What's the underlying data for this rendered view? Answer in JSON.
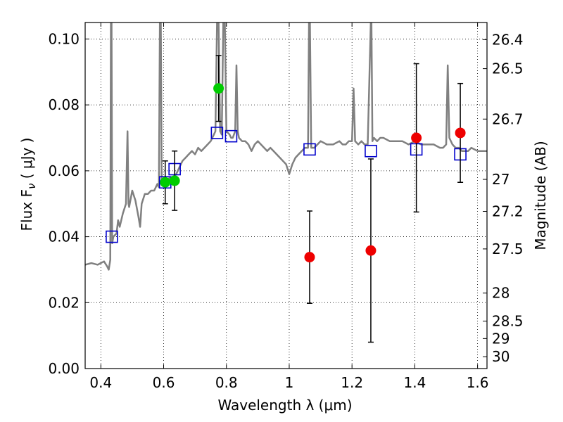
{
  "chart_data": {
    "type": "line",
    "xlabel": "Wavelength  λ (μm)",
    "ylabel": "Flux  F",
    "ylabel_sub": "ν",
    "ylabel_units": " ( μJy )",
    "y2label": "Magnitude (AB)",
    "xlim": [
      0.35,
      1.63
    ],
    "ylim": [
      0.0,
      0.105
    ],
    "xticks": [
      0.4,
      0.6,
      0.8,
      1.0,
      1.2,
      1.4,
      1.6
    ],
    "xtick_labels": [
      "0.4",
      "0.6",
      "0.8",
      "1",
      "1.2",
      "1.4",
      "1.6"
    ],
    "yticks": [
      0.0,
      0.02,
      0.04,
      0.06,
      0.08,
      0.1
    ],
    "ytick_labels": [
      "0.00",
      "0.02",
      "0.04",
      "0.06",
      "0.08",
      "0.10"
    ],
    "y2ticks": [
      {
        "label": "26.4",
        "flux": 0.0998
      },
      {
        "label": "26.5",
        "flux": 0.091
      },
      {
        "label": "26.7",
        "flux": 0.0757
      },
      {
        "label": "27",
        "flux": 0.0574
      },
      {
        "label": "27.2",
        "flux": 0.0477
      },
      {
        "label": "27.5",
        "flux": 0.0363
      },
      {
        "label": "28",
        "flux": 0.0229
      },
      {
        "label": "28.5",
        "flux": 0.0144
      },
      {
        "label": "29",
        "flux": 0.0091
      },
      {
        "label": "30",
        "flux": 0.0036
      }
    ],
    "grid": true,
    "series": [
      {
        "kind": "sed_model",
        "color": "#808080",
        "points": [
          [
            0.35,
            0.0315
          ],
          [
            0.37,
            0.032
          ],
          [
            0.39,
            0.0315
          ],
          [
            0.41,
            0.0325
          ],
          [
            0.42,
            0.031
          ],
          [
            0.425,
            0.03
          ],
          [
            0.43,
            0.033
          ],
          [
            0.432,
            0.105
          ],
          [
            0.434,
            0.105
          ],
          [
            0.436,
            0.038
          ],
          [
            0.44,
            0.04
          ],
          [
            0.45,
            0.041
          ],
          [
            0.455,
            0.045
          ],
          [
            0.46,
            0.043
          ],
          [
            0.47,
            0.047
          ],
          [
            0.48,
            0.05
          ],
          [
            0.485,
            0.072
          ],
          [
            0.488,
            0.05
          ],
          [
            0.49,
            0.049
          ],
          [
            0.5,
            0.054
          ],
          [
            0.51,
            0.051
          ],
          [
            0.52,
            0.046
          ],
          [
            0.525,
            0.043
          ],
          [
            0.53,
            0.05
          ],
          [
            0.54,
            0.053
          ],
          [
            0.55,
            0.053
          ],
          [
            0.56,
            0.054
          ],
          [
            0.57,
            0.054
          ],
          [
            0.58,
            0.056
          ],
          [
            0.585,
            0.055
          ],
          [
            0.588,
            0.105
          ],
          [
            0.591,
            0.105
          ],
          [
            0.594,
            0.056
          ],
          [
            0.6,
            0.056
          ],
          [
            0.61,
            0.057
          ],
          [
            0.62,
            0.058
          ],
          [
            0.63,
            0.058
          ],
          [
            0.64,
            0.059
          ],
          [
            0.645,
            0.06
          ],
          [
            0.65,
            0.061
          ],
          [
            0.655,
            0.062
          ],
          [
            0.66,
            0.063
          ],
          [
            0.67,
            0.064
          ],
          [
            0.68,
            0.065
          ],
          [
            0.69,
            0.066
          ],
          [
            0.7,
            0.065
          ],
          [
            0.71,
            0.067
          ],
          [
            0.72,
            0.066
          ],
          [
            0.73,
            0.067
          ],
          [
            0.74,
            0.068
          ],
          [
            0.75,
            0.069
          ],
          [
            0.755,
            0.07
          ],
          [
            0.76,
            0.071
          ],
          [
            0.765,
            0.072
          ],
          [
            0.77,
            0.105
          ],
          [
            0.775,
            0.105
          ],
          [
            0.78,
            0.072
          ],
          [
            0.785,
            0.071
          ],
          [
            0.79,
            0.105
          ],
          [
            0.795,
            0.105
          ],
          [
            0.8,
            0.072
          ],
          [
            0.81,
            0.071
          ],
          [
            0.815,
            0.07
          ],
          [
            0.82,
            0.07
          ],
          [
            0.828,
            0.072
          ],
          [
            0.832,
            0.092
          ],
          [
            0.836,
            0.072
          ],
          [
            0.84,
            0.07
          ],
          [
            0.85,
            0.069
          ],
          [
            0.86,
            0.069
          ],
          [
            0.87,
            0.068
          ],
          [
            0.88,
            0.066
          ],
          [
            0.89,
            0.068
          ],
          [
            0.9,
            0.069
          ],
          [
            0.91,
            0.068
          ],
          [
            0.92,
            0.067
          ],
          [
            0.93,
            0.066
          ],
          [
            0.94,
            0.067
          ],
          [
            0.95,
            0.066
          ],
          [
            0.96,
            0.065
          ],
          [
            0.97,
            0.064
          ],
          [
            0.98,
            0.063
          ],
          [
            0.99,
            0.062
          ],
          [
            1.0,
            0.059
          ],
          [
            1.01,
            0.062
          ],
          [
            1.02,
            0.064
          ],
          [
            1.03,
            0.065
          ],
          [
            1.04,
            0.066
          ],
          [
            1.05,
            0.067
          ],
          [
            1.06,
            0.067
          ],
          [
            1.063,
            0.105
          ],
          [
            1.066,
            0.105
          ],
          [
            1.07,
            0.067
          ],
          [
            1.08,
            0.067
          ],
          [
            1.09,
            0.068
          ],
          [
            1.1,
            0.069
          ],
          [
            1.12,
            0.068
          ],
          [
            1.14,
            0.068
          ],
          [
            1.16,
            0.069
          ],
          [
            1.17,
            0.068
          ],
          [
            1.18,
            0.068
          ],
          [
            1.19,
            0.069
          ],
          [
            1.2,
            0.069
          ],
          [
            1.205,
            0.085
          ],
          [
            1.21,
            0.069
          ],
          [
            1.22,
            0.068
          ],
          [
            1.23,
            0.069
          ],
          [
            1.24,
            0.068
          ],
          [
            1.25,
            0.068
          ],
          [
            1.26,
            0.105
          ],
          [
            1.262,
            0.105
          ],
          [
            1.265,
            0.069
          ],
          [
            1.27,
            0.07
          ],
          [
            1.28,
            0.069
          ],
          [
            1.29,
            0.07
          ],
          [
            1.3,
            0.07
          ],
          [
            1.32,
            0.069
          ],
          [
            1.34,
            0.069
          ],
          [
            1.36,
            0.069
          ],
          [
            1.38,
            0.068
          ],
          [
            1.4,
            0.069
          ],
          [
            1.42,
            0.068
          ],
          [
            1.44,
            0.068
          ],
          [
            1.46,
            0.068
          ],
          [
            1.48,
            0.067
          ],
          [
            1.49,
            0.067
          ],
          [
            1.5,
            0.068
          ],
          [
            1.505,
            0.092
          ],
          [
            1.51,
            0.07
          ],
          [
            1.52,
            0.068
          ],
          [
            1.53,
            0.067
          ],
          [
            1.54,
            0.067
          ],
          [
            1.55,
            0.066
          ],
          [
            1.57,
            0.066
          ],
          [
            1.58,
            0.067
          ],
          [
            1.6,
            0.066
          ],
          [
            1.62,
            0.066
          ],
          [
            1.63,
            0.066
          ]
        ]
      },
      {
        "kind": "model_boxes",
        "color": "#0000cc",
        "points": [
          [
            0.435,
            0.04
          ],
          [
            0.605,
            0.0565
          ],
          [
            0.635,
            0.0605
          ],
          [
            0.77,
            0.0715
          ],
          [
            0.815,
            0.0705
          ],
          [
            1.065,
            0.0665
          ],
          [
            1.26,
            0.066
          ],
          [
            1.405,
            0.0665
          ],
          [
            1.545,
            0.065
          ]
        ]
      },
      {
        "kind": "photometry",
        "color": "#00cc00",
        "points": [
          {
            "x": 0.605,
            "y": 0.0565,
            "yerr": 0.0065
          },
          {
            "x": 0.635,
            "y": 0.057,
            "yerr": 0.009
          },
          {
            "x": 0.775,
            "y": 0.085,
            "yerr": 0.01
          }
        ]
      },
      {
        "kind": "photometry",
        "color": "#ee0000",
        "points": [
          {
            "x": 1.065,
            "y": 0.0338,
            "yerr": 0.014
          },
          {
            "x": 1.26,
            "y": 0.0358,
            "yerr": 0.0278
          },
          {
            "x": 1.405,
            "y": 0.07,
            "yerr": 0.0225
          },
          {
            "x": 1.545,
            "y": 0.0715,
            "yerr": 0.015
          }
        ]
      }
    ]
  }
}
